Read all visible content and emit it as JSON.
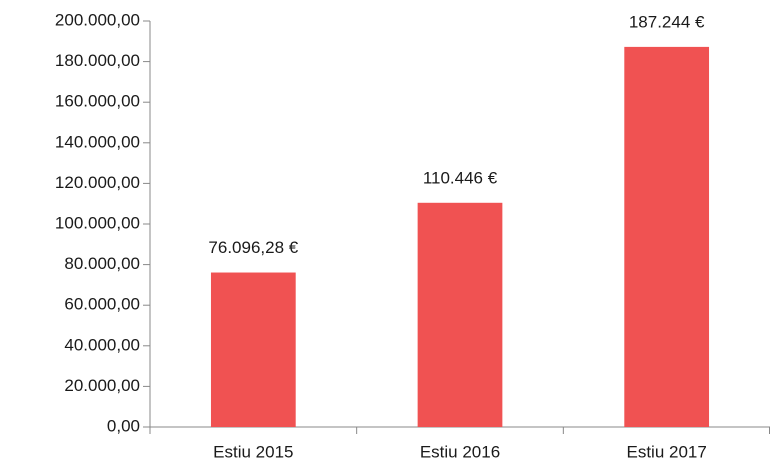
{
  "chart_data": {
    "type": "bar",
    "categories": [
      "Estiu 2015",
      "Estiu 2016",
      "Estiu 2017"
    ],
    "values": [
      76096.28,
      110446,
      187244
    ],
    "value_labels": [
      "76.096,28 €",
      "110.446 €",
      "187.244 €"
    ],
    "color": "#f05252",
    "ylim": [
      0,
      200000
    ],
    "yticks": [
      {
        "value": 0,
        "label": "0,00"
      },
      {
        "value": 20000,
        "label": "20.000,00"
      },
      {
        "value": 40000,
        "label": "40.000,00"
      },
      {
        "value": 60000,
        "label": "60.000,00"
      },
      {
        "value": 80000,
        "label": "80.000,00"
      },
      {
        "value": 100000,
        "label": "100.000,00"
      },
      {
        "value": 120000,
        "label": "120.000,00"
      },
      {
        "value": 140000,
        "label": "140.000,00"
      },
      {
        "value": 160000,
        "label": "160.000,00"
      },
      {
        "value": 180000,
        "label": "180.000,00"
      },
      {
        "value": 200000,
        "label": "200.000,00"
      }
    ],
    "grid": false
  }
}
